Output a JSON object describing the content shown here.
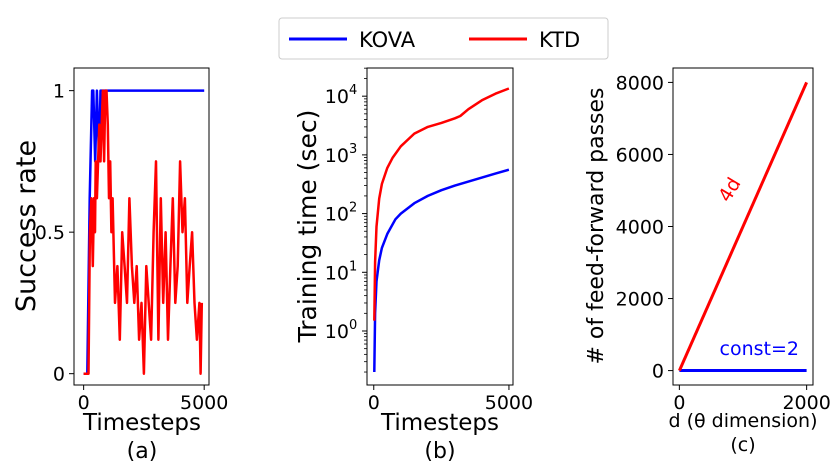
{
  "legend": {
    "entries": [
      {
        "label": "KOVA",
        "color": "#0000ff"
      },
      {
        "label": "KTD",
        "color": "#ff0000"
      }
    ]
  },
  "chart_data": [
    {
      "type": "line",
      "panel_label": "(a)",
      "xlabel": "Timesteps",
      "ylabel": "Success rate",
      "xlim": [
        -400,
        5200
      ],
      "ylim": [
        -0.04,
        1.08
      ],
      "x_ticks": [
        0,
        5000
      ],
      "x_tick_labels": [
        "0",
        "5000"
      ],
      "y_ticks": [
        0,
        0.5,
        1
      ],
      "y_tick_labels": [
        "0",
        "0.5",
        "1"
      ],
      "series": [
        {
          "name": "KOVA",
          "color": "#0000ff",
          "x": [
            0,
            150,
            250,
            350,
            400,
            480,
            550,
            640,
            700,
            800,
            900,
            1000,
            5000
          ],
          "y": [
            0,
            0,
            0.62,
            1,
            1,
            0.75,
            1,
            0.75,
            1,
            1,
            1,
            1,
            1
          ]
        },
        {
          "name": "KTD",
          "color": "#ff0000",
          "x": [
            0,
            200,
            260,
            320,
            380,
            430,
            470,
            500,
            550,
            600,
            650,
            700,
            750,
            800,
            850,
            900,
            950,
            1000,
            1050,
            1100,
            1150,
            1200,
            1300,
            1400,
            1500,
            1600,
            1700,
            1800,
            1900,
            2000,
            2100,
            2200,
            2300,
            2400,
            2500,
            2600,
            2700,
            2800,
            2900,
            3000,
            3100,
            3200,
            3300,
            3400,
            3500,
            3600,
            3700,
            3800,
            3900,
            4000,
            4100,
            4200,
            4300,
            4400,
            4500,
            4600,
            4700,
            4800,
            4850,
            4900
          ],
          "y": [
            0,
            0,
            0.5,
            0.62,
            0.38,
            0.62,
            0.5,
            0.75,
            0.62,
            0.75,
            0.88,
            0.75,
            0.88,
            1,
            0.75,
            1,
            1,
            0.88,
            0.62,
            0.75,
            0.5,
            0.62,
            0.25,
            0.38,
            0.12,
            0.5,
            0.38,
            0.25,
            0.62,
            0.38,
            0.25,
            0.38,
            0.12,
            0.25,
            0,
            0.38,
            0.25,
            0.12,
            0.5,
            0.75,
            0.12,
            0.62,
            0.25,
            0.5,
            0.12,
            0.38,
            0.62,
            0.25,
            0.38,
            0.75,
            0.5,
            0.62,
            0.25,
            0.38,
            0.5,
            0.25,
            0.12,
            0.25,
            0,
            0.25
          ]
        }
      ]
    },
    {
      "type": "line",
      "panel_label": "(b)",
      "xlabel": "Timesteps",
      "ylabel": "Training time (sec)",
      "yscale": "log",
      "xlim": [
        -250,
        5150
      ],
      "ylim_log10": [
        -0.92,
        4.48
      ],
      "x_ticks": [
        0,
        5000
      ],
      "x_tick_labels": [
        "0",
        "5000"
      ],
      "y_ticks_log10": [
        0,
        1,
        2,
        3,
        4
      ],
      "y_tick_labels": [
        "10^0",
        "10^1",
        "10^2",
        "10^3",
        "10^4"
      ],
      "series": [
        {
          "name": "KOVA",
          "color": "#0000ff",
          "x": [
            20,
            50,
            100,
            200,
            300,
            500,
            800,
            1000,
            1500,
            2000,
            2500,
            3000,
            3500,
            4000,
            4500,
            5000
          ],
          "y": [
            0.2,
            2,
            7,
            16,
            26,
            45,
            80,
            100,
            150,
            200,
            250,
            300,
            350,
            410,
            480,
            560
          ]
        },
        {
          "name": "KTD",
          "color": "#ff0000",
          "x": [
            20,
            50,
            100,
            200,
            300,
            500,
            700,
            1000,
            1500,
            2000,
            2500,
            3000,
            3200,
            3500,
            4000,
            4500,
            5000
          ],
          "y": [
            1.5,
            15,
            60,
            180,
            320,
            600,
            900,
            1400,
            2300,
            3000,
            3500,
            4200,
            4600,
            6000,
            8500,
            11000,
            13500
          ]
        }
      ]
    },
    {
      "type": "line",
      "panel_label": "(c)",
      "xlabel": "d (θ dimension)",
      "ylabel": "# of feed-forward passes",
      "xlim": [
        -100,
        2100
      ],
      "ylim": [
        -400,
        8400
      ],
      "x_ticks": [
        0,
        2000
      ],
      "x_tick_labels": [
        "0",
        "2000"
      ],
      "y_ticks": [
        0,
        2000,
        4000,
        6000,
        8000
      ],
      "y_tick_labels": [
        "0",
        "2000",
        "4000",
        "6000",
        "8000"
      ],
      "series": [
        {
          "name": "KOVA",
          "color": "#0000ff",
          "x": [
            0,
            2000
          ],
          "y": [
            2,
            2
          ]
        },
        {
          "name": "KTD",
          "color": "#ff0000",
          "x": [
            0,
            2000
          ],
          "y": [
            0,
            8000
          ]
        }
      ],
      "annotations": [
        {
          "text": "4d",
          "color": "#ff0000"
        },
        {
          "text": "const=2",
          "color": "#0000ff"
        }
      ]
    }
  ]
}
